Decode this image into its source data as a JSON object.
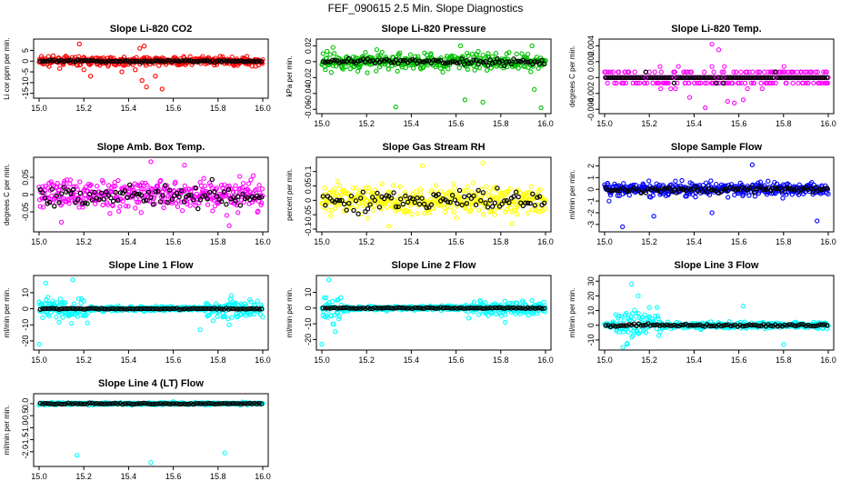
{
  "figure_title": "FEF_090615  2.5 Min. Slope Diagnostics",
  "chart_data": [
    {
      "type": "scatter",
      "title": "Slope Li-820 CO2",
      "ylabel": "Li cor ppm per min.",
      "color": "#ff0000",
      "xlim": [
        15.0,
        16.0
      ],
      "x_ticks": [
        "15.0",
        "15.2",
        "15.4",
        "15.6",
        "15.8",
        "16.0"
      ],
      "ylim": [
        -16,
        9
      ],
      "y_ticks": [
        -15,
        -10,
        -5,
        0,
        5
      ],
      "noise": 1.6,
      "mean_amp": 0.4,
      "outliers": [
        [
          15.18,
          8
        ],
        [
          15.2,
          -4
        ],
        [
          15.23,
          -7
        ],
        [
          15.37,
          -5
        ],
        [
          15.43,
          -4
        ],
        [
          15.45,
          6
        ],
        [
          15.46,
          -9
        ],
        [
          15.47,
          7
        ],
        [
          15.48,
          -12
        ],
        [
          15.52,
          -7
        ],
        [
          15.55,
          -13
        ]
      ]
    },
    {
      "type": "scatter",
      "title": "Slope Li-820 Pressure",
      "ylabel": "kPa per min.",
      "color": "#00c000",
      "xlim": [
        15.0,
        16.0
      ],
      "x_ticks": [
        "15.0",
        "15.2",
        "15.4",
        "15.6",
        "15.8",
        "16.0"
      ],
      "ylim": [
        -0.062,
        0.025
      ],
      "y_ticks": [
        -0.06,
        -0.04,
        -0.02,
        0,
        0.02
      ],
      "noise": 0.009,
      "mean_amp": 0.003,
      "outliers": [
        [
          15.33,
          -0.057
        ],
        [
          15.64,
          -0.048
        ],
        [
          15.72,
          -0.051
        ],
        [
          15.98,
          -0.058
        ],
        [
          15.95,
          -0.035
        ],
        [
          15.05,
          0.018
        ],
        [
          15.94,
          0.02
        ],
        [
          15.62,
          0.02
        ]
      ]
    },
    {
      "type": "scatter",
      "title": "Slope Li-820 Temp.",
      "ylabel": "degrees C per min.",
      "color": "#ff00ff",
      "xlim": [
        15.0,
        16.0
      ],
      "x_ticks": [
        "15.0",
        "15.2",
        "15.4",
        "15.6",
        "15.8",
        "16.0"
      ],
      "ylim": [
        -0.0042,
        0.0045
      ],
      "y_ticks": [
        -0.004,
        -0.002,
        0,
        0.002,
        0.004
      ],
      "quant": 0.0007,
      "noise": 0.0008,
      "mean_amp": 0.0003,
      "outliers": [
        [
          15.48,
          0.0042
        ],
        [
          15.51,
          0.0035
        ],
        [
          15.45,
          -0.0038
        ],
        [
          15.55,
          -0.003
        ],
        [
          15.58,
          -0.0032
        ],
        [
          15.62,
          -0.0028
        ],
        [
          15.38,
          -0.0025
        ]
      ]
    },
    {
      "type": "scatter",
      "title": "Slope Amb. Box Temp.",
      "ylabel": "degrees C per min.",
      "color": "#ff00ff",
      "xlim": [
        15.0,
        16.0
      ],
      "x_ticks": [
        "15.0",
        "15.2",
        "15.4",
        "15.6",
        "15.8",
        "16.0"
      ],
      "ylim": [
        -0.1,
        0.1
      ],
      "y_ticks": [
        -0.05,
        0,
        0.05
      ],
      "noise": 0.035,
      "mean_amp": 0.025,
      "outliers": [
        [
          15.5,
          0.095
        ],
        [
          15.65,
          0.085
        ],
        [
          15.85,
          -0.09
        ],
        [
          15.1,
          -0.08
        ]
      ]
    },
    {
      "type": "scatter",
      "title": "Slope Gas Stream RH",
      "ylabel": "percent per min.",
      "color": "#ffff00",
      "xlim": [
        15.0,
        16.0
      ],
      "x_ticks": [
        "15.0",
        "15.2",
        "15.4",
        "15.6",
        "15.8",
        "16.0"
      ],
      "ylim": [
        -0.1,
        0.14
      ],
      "y_ticks": [
        -0.1,
        -0.05,
        0,
        0.05,
        0.1
      ],
      "noise": 0.04,
      "mean_amp": 0.03,
      "outliers": [
        [
          15.72,
          0.13
        ],
        [
          15.45,
          0.12
        ],
        [
          15.3,
          -0.09
        ],
        [
          15.85,
          -0.08
        ]
      ]
    },
    {
      "type": "scatter",
      "title": "Slope Sample Flow",
      "ylabel": "ml/min per min.",
      "color": "#0000ff",
      "xlim": [
        15.0,
        16.0
      ],
      "x_ticks": [
        "15.0",
        "15.2",
        "15.4",
        "15.6",
        "15.8",
        "16.0"
      ],
      "ylim": [
        -3.4,
        2.5
      ],
      "y_ticks": [
        -3,
        -2,
        -1,
        0,
        1,
        2
      ],
      "noise": 0.45,
      "mean_amp": 0.2,
      "outliers": [
        [
          15.66,
          2.1
        ],
        [
          15.08,
          -3.2
        ],
        [
          15.22,
          -2.3
        ],
        [
          15.48,
          -2.0
        ],
        [
          15.95,
          -2.7
        ],
        [
          15.02,
          -1.0
        ]
      ]
    },
    {
      "type": "scatter",
      "title": "Slope Line 1 Flow",
      "ylabel": "ml/min per min.",
      "color": "#00ffff",
      "xlim": [
        15.0,
        16.0
      ],
      "x_ticks": [
        "15.0",
        "15.2",
        "15.4",
        "15.6",
        "15.8",
        "16.0"
      ],
      "ylim": [
        -24,
        19
      ],
      "y_ticks": [
        -20,
        -10,
        0,
        10
      ],
      "noise": 1.2,
      "mean_amp": 0.3,
      "spread_zones": [
        [
          15.0,
          15.22,
          7
        ],
        [
          15.74,
          16.0,
          5
        ]
      ],
      "outliers": [
        [
          15.15,
          18
        ],
        [
          15.03,
          16
        ],
        [
          15.0,
          -22
        ],
        [
          15.85,
          -10
        ],
        [
          15.72,
          -13
        ]
      ]
    },
    {
      "type": "scatter",
      "title": "Slope Line 2 Flow",
      "ylabel": "ml/min per min.",
      "color": "#00ffff",
      "xlim": [
        15.0,
        16.0
      ],
      "x_ticks": [
        "15.0",
        "15.2",
        "15.4",
        "15.6",
        "15.8",
        "16.0"
      ],
      "ylim": [
        -25,
        19
      ],
      "y_ticks": [
        -20,
        -10,
        0,
        10
      ],
      "noise": 1.2,
      "mean_amp": 0.3,
      "spread_zones": [
        [
          15.0,
          15.1,
          8
        ],
        [
          15.65,
          16.0,
          4
        ]
      ],
      "outliers": [
        [
          15.03,
          18
        ],
        [
          15.0,
          -23
        ],
        [
          15.06,
          -15
        ],
        [
          15.82,
          -9
        ]
      ]
    },
    {
      "type": "scatter",
      "title": "Slope Line 3 Flow",
      "ylabel": "ml/min per min.",
      "color": "#00ffff",
      "xlim": [
        15.0,
        16.0
      ],
      "x_ticks": [
        "15.0",
        "15.2",
        "15.4",
        "15.6",
        "15.8",
        "16.0"
      ],
      "ylim": [
        -15,
        32
      ],
      "y_ticks": [
        -10,
        0,
        10,
        20,
        30
      ],
      "noise": 1.8,
      "mean_amp": 0.8,
      "spread_zones": [
        [
          15.05,
          15.25,
          9
        ]
      ],
      "outliers": [
        [
          15.12,
          28
        ],
        [
          15.15,
          20
        ],
        [
          15.1,
          -13
        ],
        [
          15.2,
          12
        ],
        [
          15.62,
          13
        ],
        [
          15.8,
          -13
        ]
      ]
    },
    {
      "type": "scatter",
      "title": "Slope Line 4 (LT) Flow",
      "ylabel": "ml/min per min.",
      "color": "#00ffff",
      "xlim": [
        15.0,
        16.0
      ],
      "x_ticks": [
        "15.0",
        "15.2",
        "15.4",
        "15.6",
        "15.8",
        "16.0"
      ],
      "ylim": [
        -2.5,
        0.3
      ],
      "y_ticks": [
        -2,
        -1.5,
        -1,
        -0.5,
        0
      ],
      "y_tick_labels": [
        "-2.0",
        "-1.5",
        "-1.0",
        "-0.5",
        "0.0"
      ],
      "noise": 0.04,
      "mean_amp": 0.02,
      "outliers": [
        [
          15.17,
          -2.15
        ],
        [
          15.5,
          -2.45
        ],
        [
          15.83,
          -2.05
        ],
        [
          15.6,
          0.08
        ]
      ]
    }
  ]
}
